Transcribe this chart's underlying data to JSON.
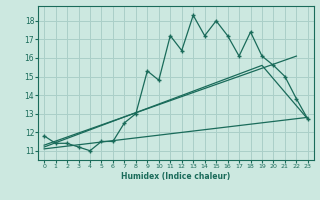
{
  "xlabel": "Humidex (Indice chaleur)",
  "bg_color": "#cce8e0",
  "grid_color": "#aacfc8",
  "line_color": "#1a6b5a",
  "xlim": [
    -0.5,
    23.5
  ],
  "ylim": [
    10.5,
    18.8
  ],
  "xticks": [
    0,
    1,
    2,
    3,
    4,
    5,
    6,
    7,
    8,
    9,
    10,
    11,
    12,
    13,
    14,
    15,
    16,
    17,
    18,
    19,
    20,
    21,
    22,
    23
  ],
  "yticks": [
    11,
    12,
    13,
    14,
    15,
    16,
    17,
    18
  ],
  "main_x": [
    0,
    1,
    2,
    3,
    4,
    5,
    6,
    7,
    8,
    9,
    10,
    11,
    12,
    13,
    14,
    15,
    16,
    17,
    18,
    19,
    20,
    21,
    22,
    23
  ],
  "main_y": [
    11.8,
    11.4,
    11.4,
    11.2,
    11.0,
    11.5,
    11.5,
    12.5,
    13.0,
    15.3,
    14.8,
    17.2,
    16.4,
    18.3,
    17.2,
    18.0,
    17.2,
    16.1,
    17.4,
    16.1,
    15.6,
    15.0,
    13.8,
    12.7
  ],
  "line1_x": [
    0,
    22
  ],
  "line1_y": [
    11.3,
    16.1
  ],
  "line2_x": [
    0,
    19,
    23
  ],
  "line2_y": [
    11.2,
    15.6,
    12.7
  ],
  "line3_x": [
    0,
    23
  ],
  "line3_y": [
    11.1,
    12.8
  ]
}
